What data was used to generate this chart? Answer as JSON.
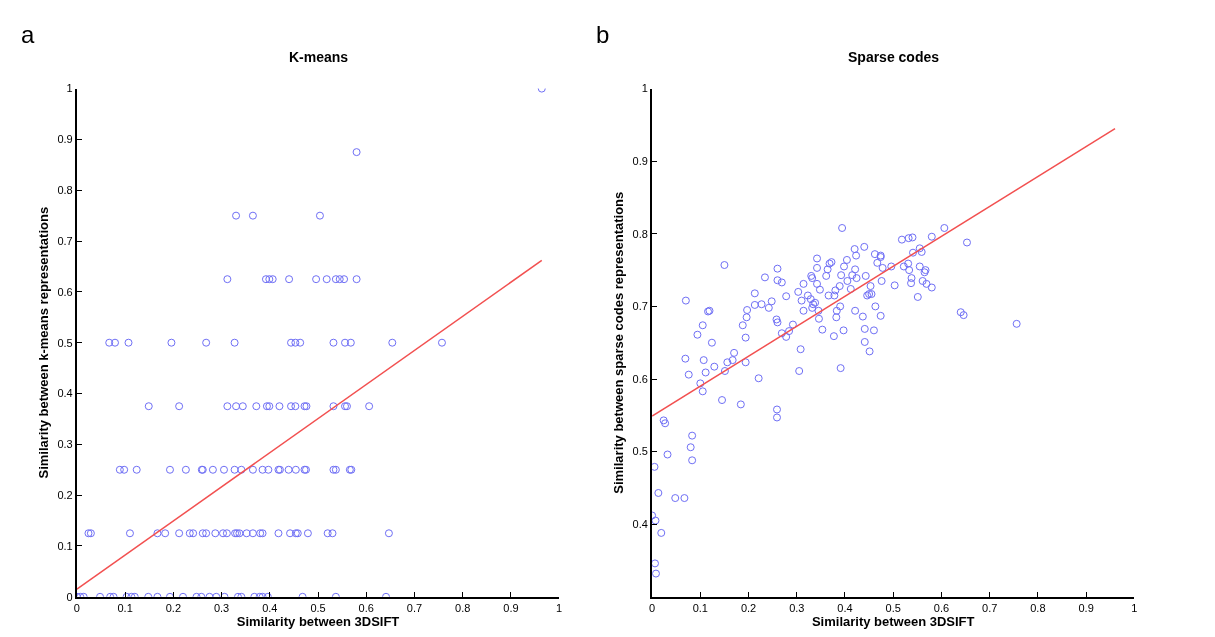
{
  "chart_data": [
    {
      "type": "scatter",
      "title": "K-means",
      "xlabel": "Similarity between 3DSIFT",
      "ylabel": "Similarity between k-means representations",
      "annotations": [
        "a"
      ],
      "xlim": [
        0,
        1
      ],
      "ylim": [
        0,
        1
      ],
      "xticks": [
        0,
        0.1,
        0.2,
        0.3,
        0.4,
        0.5,
        0.6,
        0.7,
        0.8,
        0.9,
        1
      ],
      "yticks": [
        0,
        0.1,
        0.2,
        0.3,
        0.4,
        0.5,
        0.6,
        0.7,
        0.8,
        0.9,
        1
      ],
      "series": [
        {
          "color": "#6f6ff5",
          "marker": "circle",
          "x": [
            0.964,
            0.58,
            0.33,
            0.365,
            0.504,
            0.312,
            0.392,
            0.399,
            0.406,
            0.44,
            0.496,
            0.518,
            0.537,
            0.545,
            0.554,
            0.58,
            0.067,
            0.079,
            0.107,
            0.196,
            0.268,
            0.327,
            0.444,
            0.453,
            0.463,
            0.532,
            0.556,
            0.568,
            0.654,
            0.757,
            0.149,
            0.212,
            0.312,
            0.33,
            0.344,
            0.372,
            0.394,
            0.399,
            0.42,
            0.444,
            0.453,
            0.472,
            0.476,
            0.532,
            0.556,
            0.56,
            0.606,
            0.089,
            0.098,
            0.124,
            0.193,
            0.226,
            0.259,
            0.261,
            0.282,
            0.305,
            0.327,
            0.341,
            0.365,
            0.385,
            0.397,
            0.418,
            0.421,
            0.439,
            0.454,
            0.472,
            0.475,
            0.532,
            0.537,
            0.566,
            0.569,
            0.024,
            0.029,
            0.11,
            0.167,
            0.183,
            0.212,
            0.234,
            0.241,
            0.261,
            0.268,
            0.287,
            0.303,
            0.311,
            0.328,
            0.332,
            0.337,
            0.352,
            0.365,
            0.38,
            0.385,
            0.418,
            0.442,
            0.454,
            0.458,
            0.479,
            0.52,
            0.53,
            0.647,
            0,
            0.007,
            0.014,
            0.048,
            0.069,
            0.076,
            0.103,
            0.113,
            0.12,
            0.148,
            0.167,
            0.193,
            0.22,
            0.248,
            0.258,
            0.275,
            0.289,
            0.306,
            0.334,
            0.341,
            0.368,
            0.379,
            0.385,
            0.396,
            0.468,
            0.537,
            0.641
          ],
          "values": [
            1,
            0.875,
            0.75,
            0.75,
            0.75,
            0.625,
            0.625,
            0.625,
            0.625,
            0.625,
            0.625,
            0.625,
            0.625,
            0.625,
            0.625,
            0.625,
            0.5,
            0.5,
            0.5,
            0.5,
            0.5,
            0.5,
            0.5,
            0.5,
            0.5,
            0.5,
            0.5,
            0.5,
            0.5,
            0.5,
            0.375,
            0.375,
            0.375,
            0.375,
            0.375,
            0.375,
            0.375,
            0.375,
            0.375,
            0.375,
            0.375,
            0.375,
            0.375,
            0.375,
            0.375,
            0.375,
            0.375,
            0.25,
            0.25,
            0.25,
            0.25,
            0.25,
            0.25,
            0.25,
            0.25,
            0.25,
            0.25,
            0.25,
            0.25,
            0.25,
            0.25,
            0.25,
            0.25,
            0.25,
            0.25,
            0.25,
            0.25,
            0.25,
            0.25,
            0.25,
            0.25,
            0.125,
            0.125,
            0.125,
            0.125,
            0.125,
            0.125,
            0.125,
            0.125,
            0.125,
            0.125,
            0.125,
            0.125,
            0.125,
            0.125,
            0.125,
            0.125,
            0.125,
            0.125,
            0.125,
            0.125,
            0.125,
            0.125,
            0.125,
            0.125,
            0.125,
            0.125,
            0.125,
            0.125,
            0,
            0,
            0,
            0,
            0,
            0,
            0,
            0,
            0,
            0,
            0,
            0,
            0,
            0,
            0,
            0,
            0,
            0,
            0,
            0,
            0,
            0,
            0,
            0,
            0,
            0,
            0
          ]
        },
        {
          "type": "line",
          "color": "#f25050",
          "marker": "none",
          "line_style": "solid",
          "x": [
            0,
            0.964
          ],
          "values": [
            0.015,
            0.662
          ]
        }
      ]
    },
    {
      "type": "scatter",
      "title": "Sparse codes",
      "xlabel": "Similarity between 3DSIFT",
      "ylabel": "Similarity between sparse codes representations",
      "annotations": [
        "b"
      ],
      "xlim": [
        0,
        1
      ],
      "ylim": [
        0.3,
        1
      ],
      "xticks": [
        0,
        0.1,
        0.2,
        0.3,
        0.4,
        0.5,
        0.6,
        0.7,
        0.8,
        0.9,
        1
      ],
      "yticks": [
        0.4,
        0.5,
        0.6,
        0.7,
        0.8,
        0.9,
        1
      ],
      "series": [
        {
          "color": "#6f6ff5",
          "marker": "circle",
          "x": [
            0.394,
            0.606,
            0.653,
            0.518,
            0.532,
            0.54,
            0.58,
            0.44,
            0.42,
            0.423,
            0.342,
            0.372,
            0.368,
            0.404,
            0.462,
            0.474,
            0.474,
            0.15,
            0.26,
            0.342,
            0.364,
            0.398,
            0.392,
            0.421,
            0.415,
            0.424,
            0.443,
            0.467,
            0.478,
            0.496,
            0.522,
            0.533,
            0.531,
            0.541,
            0.555,
            0.559,
            0.555,
            0.567,
            0.565,
            0.538,
            0.537,
            0.561,
            0.569,
            0.58,
            0.551,
            0.503,
            0.476,
            0.453,
            0.45,
            0.455,
            0.446,
            0.463,
            0.474,
            0.46,
            0.441,
            0.441,
            0.451,
            0.421,
            0.437,
            0.405,
            0.412,
            0.389,
            0.39,
            0.38,
            0.378,
            0.366,
            0.383,
            0.382,
            0.377,
            0.397,
            0.391,
            0.361,
            0.348,
            0.342,
            0.332,
            0.33,
            0.314,
            0.303,
            0.31,
            0.323,
            0.329,
            0.334,
            0.332,
            0.338,
            0.314,
            0.345,
            0.346,
            0.353,
            0.308,
            0.305,
            0.292,
            0.284,
            0.278,
            0.269,
            0.278,
            0.269,
            0.26,
            0.258,
            0.26,
            0.259,
            0.259,
            0.234,
            0.248,
            0.242,
            0.227,
            0.213,
            0.213,
            0.197,
            0.196,
            0.188,
            0.194,
            0.194,
            0.17,
            0.167,
            0.156,
            0.151,
            0.221,
            0.184,
            0.145,
            0.129,
            0.124,
            0.111,
            0.107,
            0.105,
            0.1,
            0.105,
            0.094,
            0.119,
            0.116,
            0.07,
            0.069,
            0.076,
            0.083,
            0.08,
            0.083,
            0.024,
            0.027,
            0.032,
            0.005,
            0.013,
            0.048,
            0.067,
            0,
            0.007,
            0.019,
            0.006,
            0.008,
            0.64,
            0.646,
            0.756
          ],
          "values": [
            0.808,
            0.808,
            0.788,
            0.792,
            0.794,
            0.795,
            0.796,
            0.782,
            0.779,
            0.77,
            0.766,
            0.761,
            0.759,
            0.764,
            0.772,
            0.77,
            0.768,
            0.757,
            0.752,
            0.753,
            0.751,
            0.755,
            0.743,
            0.751,
            0.743,
            0.739,
            0.742,
            0.76,
            0.753,
            0.755,
            0.755,
            0.75,
            0.759,
            0.774,
            0.78,
            0.775,
            0.755,
            0.75,
            0.747,
            0.739,
            0.732,
            0.735,
            0.731,
            0.726,
            0.713,
            0.729,
            0.735,
            0.728,
            0.717,
            0.717,
            0.715,
            0.7,
            0.687,
            0.667,
            0.669,
            0.651,
            0.638,
            0.694,
            0.686,
            0.735,
            0.724,
            0.728,
            0.7,
            0.722,
            0.715,
            0.715,
            0.694,
            0.685,
            0.659,
            0.667,
            0.615,
            0.742,
            0.723,
            0.731,
            0.739,
            0.742,
            0.731,
            0.72,
            0.708,
            0.715,
            0.71,
            0.703,
            0.698,
            0.705,
            0.694,
            0.694,
            0.683,
            0.668,
            0.641,
            0.611,
            0.675,
            0.666,
            0.658,
            0.663,
            0.714,
            0.733,
            0.736,
            0.682,
            0.678,
            0.558,
            0.547,
            0.74,
            0.707,
            0.698,
            0.703,
            0.718,
            0.702,
            0.695,
            0.685,
            0.674,
            0.657,
            0.623,
            0.636,
            0.626,
            0.623,
            0.611,
            0.601,
            0.565,
            0.571,
            0.617,
            0.65,
            0.609,
            0.626,
            0.583,
            0.594,
            0.674,
            0.661,
            0.694,
            0.693,
            0.708,
            0.628,
            0.606,
            0.522,
            0.506,
            0.488,
            0.543,
            0.539,
            0.496,
            0.479,
            0.443,
            0.436,
            0.436,
            0.412,
            0.405,
            0.388,
            0.346,
            0.332,
            0.692,
            0.688,
            0.676
          ]
        },
        {
          "type": "line",
          "color": "#f25050",
          "marker": "none",
          "line_style": "solid",
          "x": [
            0,
            0.96
          ],
          "values": [
            0.549,
            0.945
          ]
        }
      ]
    }
  ]
}
